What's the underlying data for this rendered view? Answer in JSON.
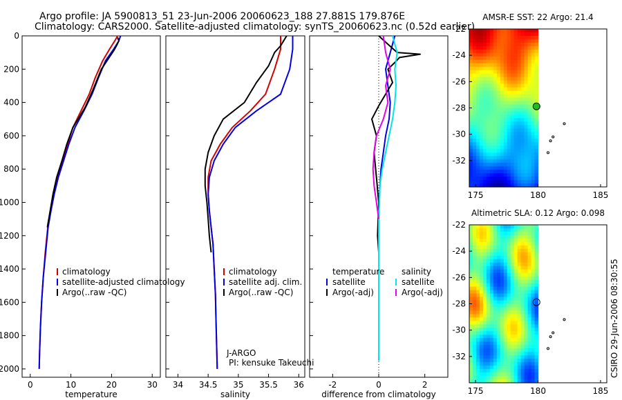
{
  "header": {
    "line1": "Argo profile: JA 5900813_51 23-Jun-2006 20060623_188 27.881S 179.876E",
    "line2": "Climatology: CARS2000. Satellite-adjusted climatology: synTS_20060623.nc (0.52d earlier)"
  },
  "footer": {
    "credit": "CSIRO 29-Jun-2006 08:30:55",
    "program": "J-ARGO",
    "pi": "PI: kensuke Takeuchi"
  },
  "colors": {
    "red": "#d40000",
    "blue": "#0000e6",
    "black": "#000000",
    "cyan": "#00e6e6",
    "magenta": "#e600e6"
  },
  "chart_data": [
    {
      "type": "line",
      "xlabel": "temperature",
      "xlim": [
        -2,
        32
      ],
      "xticks": [
        0,
        10,
        20,
        30
      ],
      "ylim": [
        0,
        2050
      ],
      "yticks": [
        0,
        200,
        400,
        600,
        800,
        1000,
        1200,
        1400,
        1600,
        1800,
        2000
      ],
      "legend": [
        "climatology",
        "satellite-adjusted climatology",
        "Argo(..raw -QC)"
      ],
      "legend_placement": "lower-right",
      "series": [
        {
          "name": "climatology",
          "color": "red",
          "x": [
            21.5,
            20.8,
            19.5,
            17.8,
            16,
            14.5,
            12.5,
            10.5,
            9.2,
            8.0,
            6.7,
            5.8,
            5.0,
            4.3,
            3.7,
            3.2,
            2.8,
            2.5,
            2.3,
            2.2
          ],
          "y": [
            0,
            30,
            80,
            150,
            250,
            350,
            450,
            550,
            650,
            750,
            850,
            950,
            1050,
            1150,
            1300,
            1450,
            1600,
            1750,
            1900,
            2000
          ]
        },
        {
          "name": "satellite-adjusted climatology",
          "color": "blue",
          "x": [
            22.2,
            21.8,
            20.5,
            18.5,
            16.8,
            15.2,
            13.2,
            11,
            9.5,
            8.2,
            6.9,
            5.9,
            5.1,
            4.4,
            3.8,
            3.2,
            2.8,
            2.5,
            2.3,
            2.2
          ],
          "y": [
            0,
            30,
            80,
            150,
            250,
            350,
            450,
            550,
            650,
            750,
            850,
            950,
            1050,
            1150,
            1300,
            1450,
            1600,
            1750,
            1900,
            2000
          ]
        },
        {
          "name": "Argo(..raw -QC)",
          "color": "black",
          "x": [
            21.5,
            21.8,
            21.2,
            20.5,
            17.5,
            15.5,
            13.5,
            10.5,
            9,
            7.8,
            6.5,
            5.6,
            4.9,
            4.2
          ],
          "y": [
            10,
            30,
            60,
            90,
            200,
            320,
            430,
            550,
            650,
            750,
            850,
            950,
            1050,
            1150
          ]
        }
      ]
    },
    {
      "type": "line",
      "xlabel": "salinity",
      "xlim": [
        33.8,
        36.1
      ],
      "xticks": [
        34,
        34.5,
        35,
        35.5,
        36
      ],
      "ylim": [
        0,
        2050
      ],
      "legend": [
        "climatology",
        "satellite adj. clim.",
        "Argo(..raw -QC)"
      ],
      "legend_placement": "lower-right",
      "series": [
        {
          "name": "climatology",
          "color": "red",
          "x": [
            35.7,
            35.7,
            35.6,
            35.45,
            35.2,
            34.9,
            34.7,
            34.55,
            34.5,
            34.5,
            34.52,
            34.55,
            34.58,
            34.6,
            34.62,
            34.63,
            34.64,
            34.65
          ],
          "y": [
            0,
            80,
            200,
            350,
            450,
            550,
            650,
            750,
            850,
            950,
            1050,
            1150,
            1250,
            1400,
            1550,
            1700,
            1850,
            2000
          ]
        },
        {
          "name": "satellite adj. clim.",
          "color": "blue",
          "x": [
            35.9,
            35.9,
            35.85,
            35.7,
            35.3,
            34.95,
            34.75,
            34.6,
            34.52,
            34.5,
            34.52,
            34.55,
            34.58,
            34.6,
            34.62,
            34.63,
            34.64,
            34.65
          ],
          "y": [
            0,
            80,
            200,
            350,
            450,
            550,
            650,
            750,
            850,
            950,
            1050,
            1150,
            1250,
            1400,
            1550,
            1700,
            1850,
            2000
          ]
        },
        {
          "name": "Argo(..raw -QC)",
          "color": "black",
          "x": [
            35.8,
            35.75,
            35.7,
            35.6,
            35.5,
            35.3,
            35.1,
            34.75,
            34.6,
            34.5,
            34.45,
            34.45,
            34.48,
            34.5,
            34.52,
            34.55
          ],
          "y": [
            0,
            30,
            60,
            100,
            180,
            280,
            400,
            500,
            600,
            700,
            800,
            900,
            1000,
            1100,
            1200,
            1300
          ]
        }
      ]
    },
    {
      "type": "line",
      "xlabel": "difference from climatology",
      "xlim": [
        -3,
        3
      ],
      "xticks": [
        -2,
        0,
        2
      ],
      "ylim": [
        0,
        2050
      ],
      "legend_groups": [
        {
          "title": "temperature",
          "entries": [
            "satellite",
            "Argo(-adj)"
          ]
        },
        {
          "title": "salinity",
          "entries": [
            "satellite",
            "Argo(-adj)"
          ]
        }
      ],
      "legend_placement": "lower-center",
      "series": [
        {
          "name": "temperature satellite",
          "color": "blue",
          "x": [
            0.7,
            0.5,
            0.3,
            0.4,
            0.5,
            0.45,
            0.3,
            0.2,
            0.1,
            0.05,
            0,
            0
          ],
          "y": [
            0,
            100,
            200,
            300,
            400,
            500,
            600,
            700,
            800,
            900,
            1100,
            1950
          ]
        },
        {
          "name": "temperature Argo(-adj)",
          "color": "black",
          "x": [
            0,
            0.4,
            0.8,
            1.8,
            0.9,
            0.7,
            0.4,
            0.6,
            0.3,
            0,
            -0.3,
            -0.1,
            -0.2,
            -0.1,
            0,
            -0.05,
            0
          ],
          "y": [
            0,
            50,
            100,
            110,
            130,
            160,
            200,
            280,
            350,
            420,
            500,
            600,
            700,
            850,
            1000,
            1200,
            1300
          ]
        },
        {
          "name": "salinity satellite",
          "color": "cyan",
          "x": [
            0.6,
            0.8,
            0.7,
            0.75,
            0.7,
            0.6,
            0.45,
            0.3,
            0.15,
            0.05,
            0,
            0
          ],
          "y": [
            0,
            100,
            200,
            300,
            400,
            500,
            600,
            700,
            800,
            900,
            1100,
            1950
          ]
        },
        {
          "name": "salinity Argo(-adj)",
          "color": "magenta",
          "x": [
            0.2,
            0.3,
            0.5,
            0.3,
            0.4,
            0.2,
            -0.1,
            -0.2,
            -0.25,
            -0.2,
            -0.1,
            0
          ],
          "y": [
            0,
            100,
            200,
            300,
            400,
            500,
            600,
            700,
            800,
            900,
            1000,
            1100
          ]
        }
      ]
    },
    {
      "type": "heatmap",
      "title": "AMSR-E SST: 22 Argo: 21.4",
      "xlim": [
        174.5,
        185.5
      ],
      "xticks": [
        175,
        180,
        185
      ],
      "ylim": [
        -34,
        -22
      ],
      "yticks": [
        -22,
        -24,
        -26,
        -28,
        -30,
        -32
      ],
      "profile_location": [
        179.876,
        -27.881
      ],
      "track": [
        [
          182.1,
          -29.2
        ],
        [
          181.2,
          -30.2
        ],
        [
          181.0,
          -30.5
        ],
        [
          180.8,
          -31.4
        ]
      ]
    },
    {
      "type": "heatmap",
      "title": "Altimetric SLA: 0.12 Argo: 0.098",
      "xlim": [
        174.5,
        185.5
      ],
      "xticks": [
        175,
        180,
        185
      ],
      "ylim": [
        -34,
        -22
      ],
      "yticks": [
        -22,
        -24,
        -26,
        -28,
        -30,
        -32
      ],
      "profile_location": [
        179.876,
        -27.881
      ],
      "track": [
        [
          182.1,
          -29.2
        ],
        [
          181.2,
          -30.2
        ],
        [
          181.0,
          -30.5
        ],
        [
          180.8,
          -31.4
        ]
      ]
    }
  ]
}
